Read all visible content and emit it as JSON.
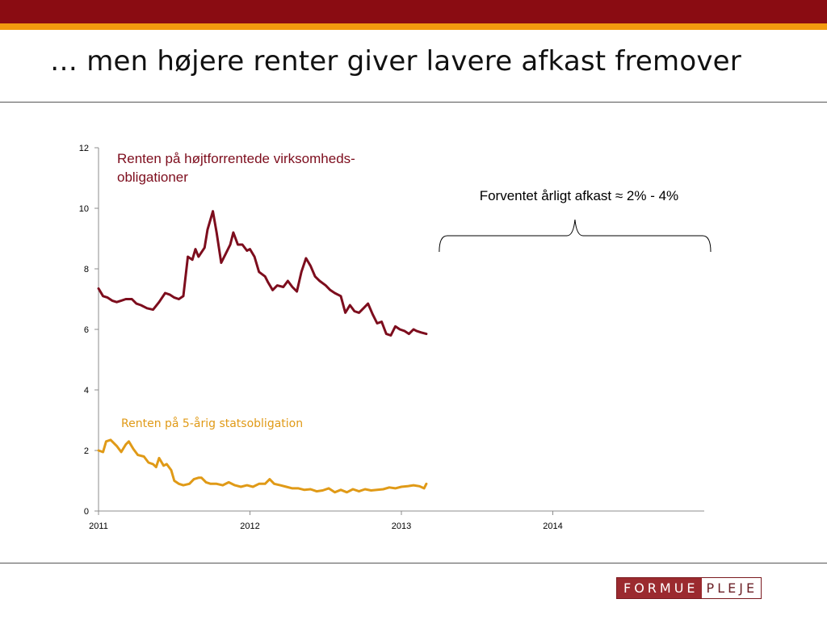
{
  "slide": {
    "title": "… men højere renter giver lavere afkast fremover"
  },
  "logo": {
    "left": "FORMUE",
    "right": "PLEJE"
  },
  "colors": {
    "accent_dark": "#8a0c12",
    "accent_orange": "#f39a0e"
  },
  "chart_data": {
    "type": "line",
    "x_ticks": [
      "2011",
      "2012",
      "2013",
      "2014"
    ],
    "xlim": [
      2011.0,
      2015.0
    ],
    "ylim": [
      0,
      12
    ],
    "y_ticks": [
      0,
      2,
      4,
      6,
      8,
      10,
      12
    ],
    "series": [
      {
        "name": "Renten på højtforrentede virksomheds-obligationer",
        "label_lines": [
          "Renten på højtforrentede virksomheds-",
          "obligationer"
        ],
        "color": "#7d0d1d",
        "points": [
          [
            2011.0,
            7.35
          ],
          [
            2011.03,
            7.1
          ],
          [
            2011.06,
            7.05
          ],
          [
            2011.09,
            6.95
          ],
          [
            2011.12,
            6.9
          ],
          [
            2011.15,
            6.95
          ],
          [
            2011.18,
            7.0
          ],
          [
            2011.22,
            7.0
          ],
          [
            2011.25,
            6.85
          ],
          [
            2011.28,
            6.8
          ],
          [
            2011.32,
            6.7
          ],
          [
            2011.36,
            6.65
          ],
          [
            2011.4,
            6.9
          ],
          [
            2011.44,
            7.2
          ],
          [
            2011.47,
            7.15
          ],
          [
            2011.5,
            7.05
          ],
          [
            2011.53,
            7.0
          ],
          [
            2011.56,
            7.1
          ],
          [
            2011.59,
            8.4
          ],
          [
            2011.62,
            8.3
          ],
          [
            2011.64,
            8.65
          ],
          [
            2011.66,
            8.4
          ],
          [
            2011.7,
            8.7
          ],
          [
            2011.72,
            9.3
          ],
          [
            2011.755,
            9.9
          ],
          [
            2011.78,
            9.2
          ],
          [
            2011.81,
            8.2
          ],
          [
            2011.84,
            8.5
          ],
          [
            2011.87,
            8.8
          ],
          [
            2011.89,
            9.2
          ],
          [
            2011.92,
            8.8
          ],
          [
            2011.95,
            8.8
          ],
          [
            2011.98,
            8.6
          ],
          [
            2012.0,
            8.65
          ],
          [
            2012.03,
            8.4
          ],
          [
            2012.06,
            7.9
          ],
          [
            2012.1,
            7.75
          ],
          [
            2012.12,
            7.55
          ],
          [
            2012.15,
            7.3
          ],
          [
            2012.18,
            7.45
          ],
          [
            2012.22,
            7.4
          ],
          [
            2012.25,
            7.6
          ],
          [
            2012.28,
            7.4
          ],
          [
            2012.31,
            7.25
          ],
          [
            2012.34,
            7.9
          ],
          [
            2012.37,
            8.35
          ],
          [
            2012.4,
            8.1
          ],
          [
            2012.43,
            7.75
          ],
          [
            2012.46,
            7.6
          ],
          [
            2012.5,
            7.45
          ],
          [
            2012.53,
            7.3
          ],
          [
            2012.56,
            7.2
          ],
          [
            2012.6,
            7.1
          ],
          [
            2012.63,
            6.55
          ],
          [
            2012.66,
            6.8
          ],
          [
            2012.69,
            6.6
          ],
          [
            2012.72,
            6.55
          ],
          [
            2012.75,
            6.7
          ],
          [
            2012.78,
            6.85
          ],
          [
            2012.81,
            6.5
          ],
          [
            2012.84,
            6.2
          ],
          [
            2012.87,
            6.25
          ],
          [
            2012.9,
            5.85
          ],
          [
            2012.93,
            5.8
          ],
          [
            2012.96,
            6.1
          ],
          [
            2012.99,
            6.0
          ],
          [
            2013.02,
            5.95
          ],
          [
            2013.05,
            5.85
          ],
          [
            2013.08,
            6.0
          ],
          [
            2013.1,
            5.95
          ],
          [
            2013.13,
            5.9
          ],
          [
            2013.165,
            5.85
          ]
        ]
      },
      {
        "name": "Renten på 5-årig statsobligation",
        "label_lines": [
          "Renten på 5-årig statsobligation"
        ],
        "color": "#e09a17",
        "points": [
          [
            2011.0,
            2.0
          ],
          [
            2011.03,
            1.95
          ],
          [
            2011.05,
            2.3
          ],
          [
            2011.08,
            2.35
          ],
          [
            2011.12,
            2.15
          ],
          [
            2011.15,
            1.95
          ],
          [
            2011.18,
            2.2
          ],
          [
            2011.2,
            2.3
          ],
          [
            2011.23,
            2.05
          ],
          [
            2011.26,
            1.85
          ],
          [
            2011.3,
            1.8
          ],
          [
            2011.33,
            1.6
          ],
          [
            2011.36,
            1.55
          ],
          [
            2011.38,
            1.45
          ],
          [
            2011.4,
            1.75
          ],
          [
            2011.43,
            1.5
          ],
          [
            2011.45,
            1.55
          ],
          [
            2011.48,
            1.35
          ],
          [
            2011.5,
            1.0
          ],
          [
            2011.53,
            0.9
          ],
          [
            2011.56,
            0.85
          ],
          [
            2011.6,
            0.9
          ],
          [
            2011.63,
            1.05
          ],
          [
            2011.66,
            1.1
          ],
          [
            2011.68,
            1.1
          ],
          [
            2011.71,
            0.95
          ],
          [
            2011.74,
            0.9
          ],
          [
            2011.78,
            0.9
          ],
          [
            2011.82,
            0.85
          ],
          [
            2011.86,
            0.95
          ],
          [
            2011.9,
            0.85
          ],
          [
            2011.94,
            0.8
          ],
          [
            2011.98,
            0.85
          ],
          [
            2012.02,
            0.8
          ],
          [
            2012.06,
            0.9
          ],
          [
            2012.1,
            0.9
          ],
          [
            2012.13,
            1.05
          ],
          [
            2012.16,
            0.9
          ],
          [
            2012.2,
            0.85
          ],
          [
            2012.24,
            0.8
          ],
          [
            2012.28,
            0.75
          ],
          [
            2012.32,
            0.75
          ],
          [
            2012.36,
            0.7
          ],
          [
            2012.4,
            0.72
          ],
          [
            2012.44,
            0.65
          ],
          [
            2012.48,
            0.68
          ],
          [
            2012.52,
            0.75
          ],
          [
            2012.56,
            0.62
          ],
          [
            2012.6,
            0.7
          ],
          [
            2012.64,
            0.62
          ],
          [
            2012.68,
            0.72
          ],
          [
            2012.72,
            0.65
          ],
          [
            2012.76,
            0.72
          ],
          [
            2012.8,
            0.68
          ],
          [
            2012.84,
            0.7
          ],
          [
            2012.88,
            0.72
          ],
          [
            2012.92,
            0.78
          ],
          [
            2012.96,
            0.75
          ],
          [
            2013.0,
            0.8
          ],
          [
            2013.04,
            0.82
          ],
          [
            2013.08,
            0.85
          ],
          [
            2013.12,
            0.82
          ],
          [
            2013.15,
            0.75
          ],
          [
            2013.165,
            0.9
          ]
        ]
      }
    ],
    "annotation": {
      "text": "Forventet årligt afkast ≈ 2% - 4%",
      "brace_from_x": 2013.25,
      "brace_to_x": 2015.0
    }
  }
}
